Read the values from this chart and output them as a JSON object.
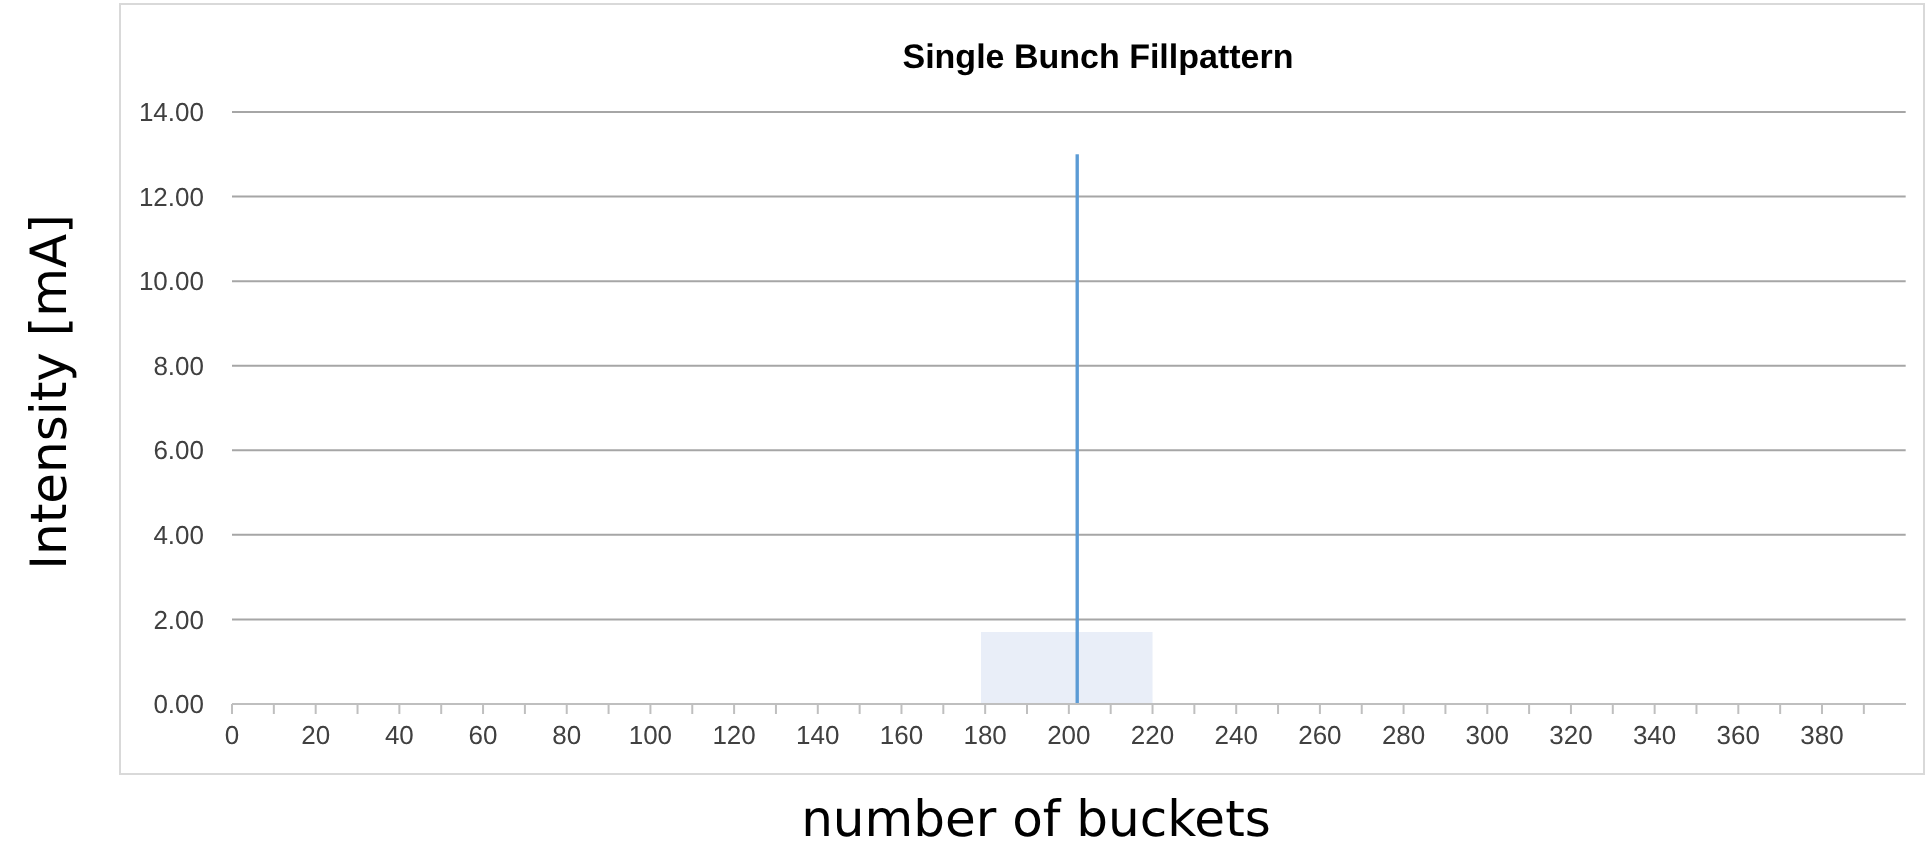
{
  "chart_data": {
    "type": "bar",
    "title": "Single Bunch Fillpattern",
    "xlabel": "number of buckets",
    "ylabel": "Intensity [mA]",
    "xlim": [
      0,
      400
    ],
    "xticks": [
      0,
      {
        "value": 10,
        "label": null
      },
      20,
      {
        "value": 30,
        "label": null
      },
      40,
      {
        "value": 50,
        "label": null
      },
      60,
      {
        "value": 70,
        "label": null
      },
      80,
      {
        "value": 90,
        "label": null
      },
      100,
      {
        "value": 110,
        "label": null
      },
      120,
      {
        "value": 130,
        "label": null
      },
      140,
      {
        "value": 150,
        "label": null
      },
      160,
      {
        "value": 170,
        "label": null
      },
      180,
      {
        "value": 190,
        "label": null
      },
      200,
      {
        "value": 210,
        "label": null
      },
      220,
      {
        "value": 230,
        "label": null
      },
      240,
      {
        "value": 250,
        "label": null
      },
      260,
      {
        "value": 270,
        "label": null
      },
      280,
      {
        "value": 290,
        "label": null
      },
      300,
      {
        "value": 310,
        "label": null
      },
      320,
      {
        "value": 330,
        "label": null
      },
      340,
      {
        "value": 350,
        "label": null
      },
      360,
      {
        "value": 370,
        "label": null
      },
      380,
      {
        "value": 390,
        "label": null
      }
    ],
    "ylim": [
      0,
      14
    ],
    "yticks": [
      {
        "value": 0,
        "label": "0.00"
      },
      {
        "value": 2,
        "label": "2.00"
      },
      {
        "value": 4,
        "label": "4.00"
      },
      {
        "value": 6,
        "label": "6.00"
      },
      {
        "value": 8,
        "label": "8.00"
      },
      {
        "value": 10,
        "label": "10.00"
      },
      {
        "value": 12,
        "label": "12.00"
      },
      {
        "value": 14,
        "label": "14.00"
      }
    ],
    "grid": "y",
    "series": [
      {
        "type": "area",
        "color": "#e9eef8",
        "x": [
          179,
          220
        ],
        "values": [
          1.7,
          1.7
        ]
      },
      {
        "color": "#5b9bd5",
        "x": [
          202
        ],
        "values": [
          13
        ]
      }
    ]
  }
}
